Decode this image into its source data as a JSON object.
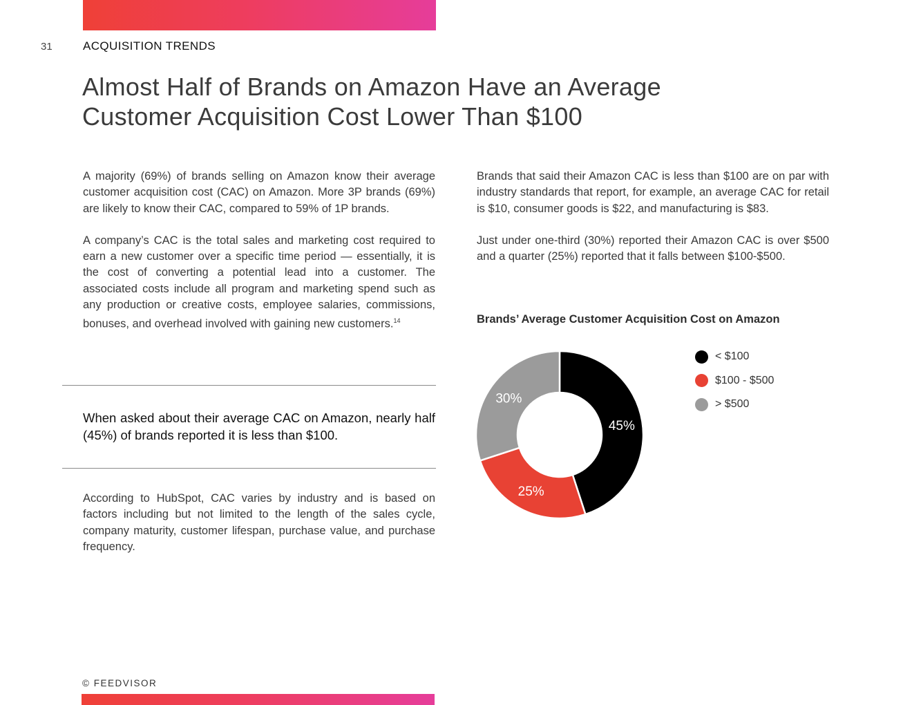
{
  "page": {
    "number": "31",
    "section": "ACQUISITION TRENDS",
    "title_line1": "Almost Half of Brands on Amazon Have an Average",
    "title_line2": "Customer Acquisition Cost Lower Than $100",
    "footer": "© FEEDVISOR",
    "accent_gradient": [
      "#ef4037",
      "#e63d9a"
    ]
  },
  "left_column": {
    "p1": "A majority (69%) of brands selling on Amazon know their average customer acquisition cost (CAC) on Amazon. More 3P brands (69%) are likely to know their CAC, compared to 59% of 1P brands.",
    "p2": "A company’s CAC is the total sales and marketing cost required to earn a new customer over a specific time period — essentially, it is the cost of converting a potential lead into a customer. The associated costs include all program and marketing spend such as any production or creative costs, employee salaries, commissions, bonuses, and overhead involved with gaining new customers.",
    "p2_footnote": "14",
    "callout": "When asked about their average CAC on Amazon, nearly half (45%) of brands reported it is less than $100.",
    "p3": "According to HubSpot, CAC varies by industry and is based on factors including but not limited to the length of the sales cycle, company maturity, customer lifespan, purchase value, and purchase frequency."
  },
  "right_column": {
    "p1": "Brands that said their Amazon CAC is less than $100 are on par with industry standards that report, for example, an average CAC for retail is $10, consumer goods is $22, and manufacturing is $83.",
    "p2": "Just under one-third (30%) reported their Amazon CAC is over $500 and a quarter (25%) reported that it falls between $100-$500."
  },
  "chart_data": {
    "type": "pie",
    "title": "Brands’ Average Customer Acquisition Cost on Amazon",
    "categories": [
      "< $100",
      "$100 - $500",
      "> $500"
    ],
    "values": [
      45,
      25,
      30
    ],
    "data_labels": [
      "45%",
      "25%",
      "30%"
    ],
    "colors": [
      "#000000",
      "#e84234",
      "#9b9b9b"
    ],
    "label_colors": [
      "#ffffff",
      "#ffffff",
      "#ffffff"
    ],
    "donut": true,
    "legend_position": "right"
  }
}
